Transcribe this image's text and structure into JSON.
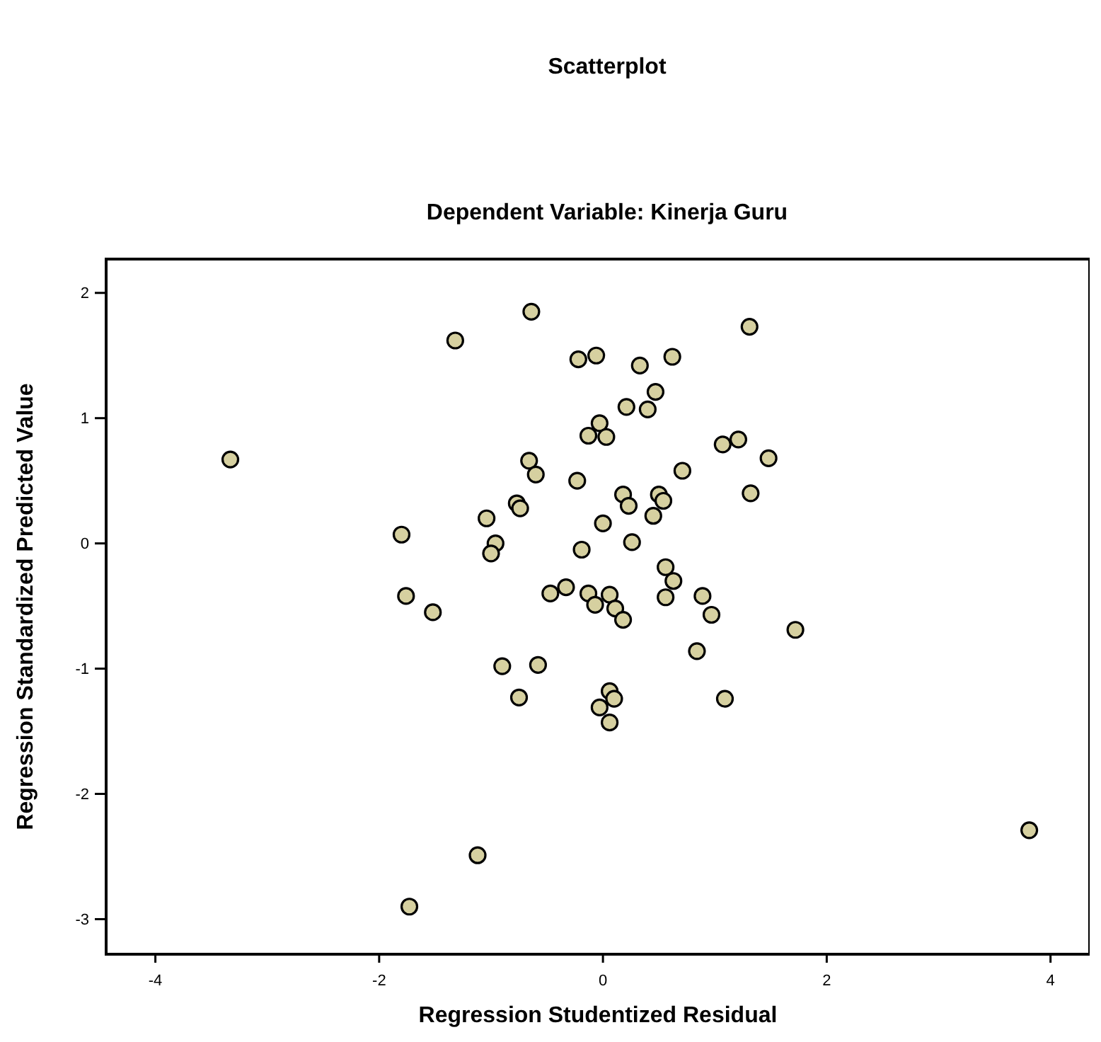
{
  "chart_data": {
    "type": "scatter",
    "title": "Scatterplot",
    "subtitle": "Dependent Variable: Kinerja Guru",
    "xlabel": "Regression Studentized Residual",
    "ylabel": "Regression Standardized Predicted Value",
    "xlim": [
      -4.44,
      4.35
    ],
    "ylim": [
      -3.28,
      2.27
    ],
    "xticks": [
      -4,
      -2,
      0,
      2,
      4
    ],
    "yticks": [
      -3,
      -2,
      -1,
      0,
      1,
      2
    ],
    "marker": "circle",
    "series": [
      {
        "color": "#d6d0a0",
        "x": [
          -3.33,
          -0.64,
          -1.32,
          -0.22,
          -0.06,
          0.33,
          0.62,
          1.31,
          0.47,
          0.21,
          0.4,
          -0.13,
          -0.03,
          0.03,
          1.07,
          1.21,
          1.48,
          0.71,
          1.32,
          -0.23,
          0.18,
          0.23,
          0.5,
          0.54,
          0.45,
          0.0,
          -0.19,
          0.26,
          0.56,
          0.63,
          -0.33,
          -0.13,
          0.06,
          0.56,
          0.89,
          -0.07,
          0.11,
          0.18,
          0.97,
          1.72,
          0.84,
          0.06,
          0.1,
          -0.03,
          0.06,
          1.09,
          3.81,
          -0.66,
          -0.6,
          -0.77,
          -0.74,
          -1.04,
          -1.8,
          -0.96,
          -1.0,
          -0.47,
          -1.76,
          -1.52,
          -0.9,
          -0.58,
          -0.75,
          -1.12,
          -1.73
        ],
        "values": [
          0.67,
          1.85,
          1.62,
          1.47,
          1.5,
          1.42,
          1.49,
          1.73,
          1.21,
          1.09,
          1.07,
          0.86,
          0.96,
          0.85,
          0.79,
          0.83,
          0.68,
          0.58,
          0.4,
          0.5,
          0.39,
          0.3,
          0.39,
          0.34,
          0.22,
          0.16,
          -0.05,
          0.01,
          -0.19,
          -0.3,
          -0.35,
          -0.4,
          -0.41,
          -0.43,
          -0.42,
          -0.49,
          -0.52,
          -0.61,
          -0.57,
          -0.69,
          -0.86,
          -1.18,
          -1.24,
          -1.31,
          -1.43,
          -1.24,
          -2.29,
          0.66,
          0.55,
          0.32,
          0.28,
          0.2,
          0.07,
          0.0,
          -0.08,
          -0.4,
          -0.42,
          -0.55,
          -0.98,
          -0.97,
          -1.23,
          -2.49,
          -2.9
        ]
      }
    ]
  }
}
